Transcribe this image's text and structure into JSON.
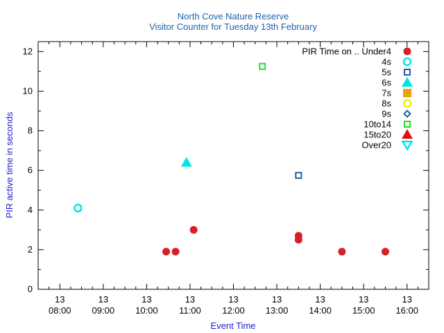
{
  "chart_data": {
    "type": "scatter",
    "title": "North Cove Nature Reserve",
    "subtitle": "Visitor Counter for Tuesday 13th February",
    "xlabel": "Event Time",
    "ylabel": "PIR active time in seconds",
    "xlim": [
      "07:30",
      "16:30"
    ],
    "ylim": [
      0,
      12.5
    ],
    "y_ticks": [
      0,
      2,
      4,
      6,
      8,
      10,
      12
    ],
    "x_ticks": [
      {
        "t": "08:00",
        "day": "13",
        "time": "08:00"
      },
      {
        "t": "09:00",
        "day": "13",
        "time": "09:00"
      },
      {
        "t": "10:00",
        "day": "13",
        "time": "10:00"
      },
      {
        "t": "11:00",
        "day": "13",
        "time": "11:00"
      },
      {
        "t": "12:00",
        "day": "13",
        "time": "12:00"
      },
      {
        "t": "13:00",
        "day": "13",
        "time": "13:00"
      },
      {
        "t": "14:00",
        "day": "13",
        "time": "14:00"
      },
      {
        "t": "15:00",
        "day": "13",
        "time": "15:00"
      },
      {
        "t": "16:00",
        "day": "13",
        "time": "16:00"
      }
    ],
    "grid": false,
    "legend_title": "PIR Time on ..",
    "legend_position": "top-right",
    "series": [
      {
        "name": "Under4",
        "marker": "filled-circle",
        "color": "#d62028",
        "points": [
          [
            "10:27",
            1.9
          ],
          [
            "10:40",
            1.9
          ],
          [
            "11:05",
            3.0
          ],
          [
            "13:30",
            2.7
          ],
          [
            "13:30",
            2.5
          ],
          [
            "14:30",
            1.9
          ],
          [
            "15:30",
            1.9
          ]
        ]
      },
      {
        "name": "4s",
        "marker": "open-circle",
        "color": "#00e6e6",
        "points": [
          [
            "08:25",
            4.1
          ]
        ]
      },
      {
        "name": "5s",
        "marker": "open-square",
        "color": "#1f5fa8",
        "points": [
          [
            "13:30",
            5.75
          ]
        ]
      },
      {
        "name": "6s",
        "marker": "filled-triangle-up",
        "color": "#00e6e6",
        "points": [
          [
            "10:55",
            6.4
          ]
        ]
      },
      {
        "name": "7s",
        "marker": "filled-square",
        "color": "#e8a20c",
        "points": []
      },
      {
        "name": "8s",
        "marker": "open-circle",
        "color": "#f0f000",
        "points": []
      },
      {
        "name": "9s",
        "marker": "open-diamond",
        "color": "#1f5fa8",
        "points": []
      },
      {
        "name": "10to14",
        "marker": "open-square",
        "color": "#22dd22",
        "points": [
          [
            "12:40",
            11.25
          ]
        ]
      },
      {
        "name": "15to20",
        "marker": "filled-triangle-up",
        "color": "#e01010",
        "points": []
      },
      {
        "name": "Over20",
        "marker": "open-triangle-down",
        "color": "#00e6e6",
        "points": []
      }
    ]
  }
}
